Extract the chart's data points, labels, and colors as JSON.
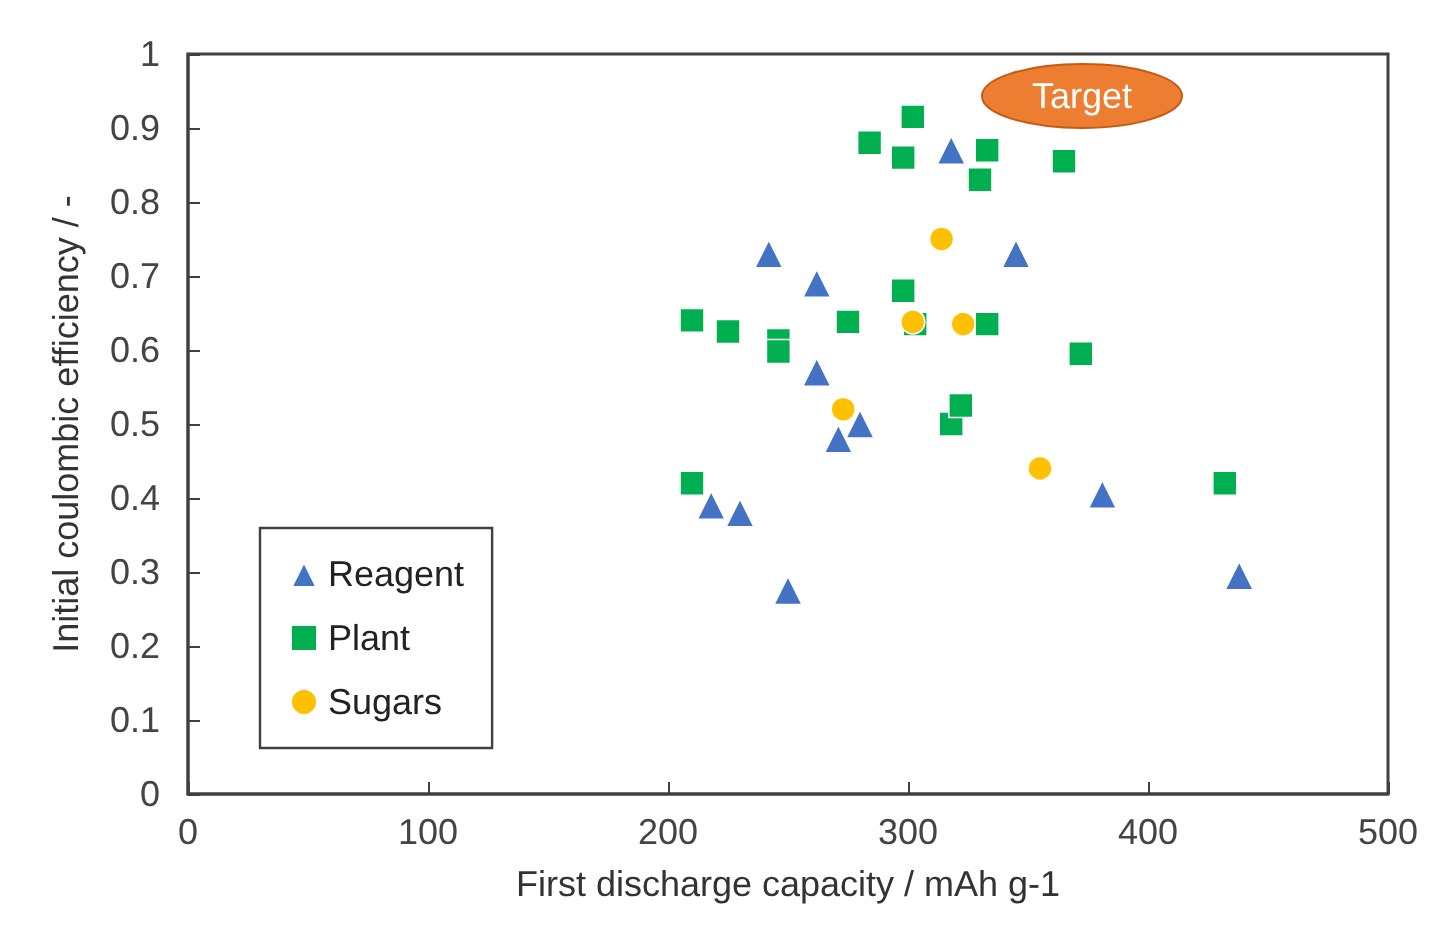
{
  "chart_data": {
    "type": "scatter",
    "xlabel": "First discharge capacity / mAh g-1",
    "ylabel": "Initial coulombic efficiency / -",
    "xlim": [
      0,
      500
    ],
    "xticks": [
      0,
      100,
      200,
      300,
      400,
      500
    ],
    "ylim": [
      0,
      1
    ],
    "yticks": [
      0,
      0.1,
      0.2,
      0.3,
      0.4,
      0.5,
      0.6,
      0.7,
      0.8,
      0.9,
      1
    ],
    "grid": false,
    "legend": "bottom left",
    "annotations": [
      "Target"
    ],
    "series": [
      {
        "name": "Reagent",
        "color": "#4472c4",
        "marker": "triangle",
        "x": [
          242,
          262,
          318,
          345,
          262,
          280,
          271,
          218,
          230,
          250,
          381,
          438
        ],
        "values": [
          0.73,
          0.69,
          0.87,
          0.73,
          0.57,
          0.5,
          0.48,
          0.39,
          0.38,
          0.275,
          0.405,
          0.295
        ]
      },
      {
        "name": "Plant",
        "color": "#00b050",
        "marker": "square",
        "x": [
          302,
          284,
          298,
          333,
          330,
          365,
          298,
          303,
          333,
          210,
          225,
          246,
          246,
          275,
          372,
          318,
          322,
          210,
          432
        ],
        "values": [
          0.915,
          0.88,
          0.86,
          0.87,
          0.83,
          0.855,
          0.68,
          0.635,
          0.635,
          0.64,
          0.625,
          0.613,
          0.598,
          0.638,
          0.595,
          0.5,
          0.525,
          0.42,
          0.42
        ]
      },
      {
        "name": "Sugars",
        "color": "#ffc000",
        "marker": "circle",
        "x": [
          314,
          302,
          323,
          273,
          355
        ],
        "values": [
          0.75,
          0.638,
          0.635,
          0.52,
          0.44
        ]
      }
    ]
  }
}
